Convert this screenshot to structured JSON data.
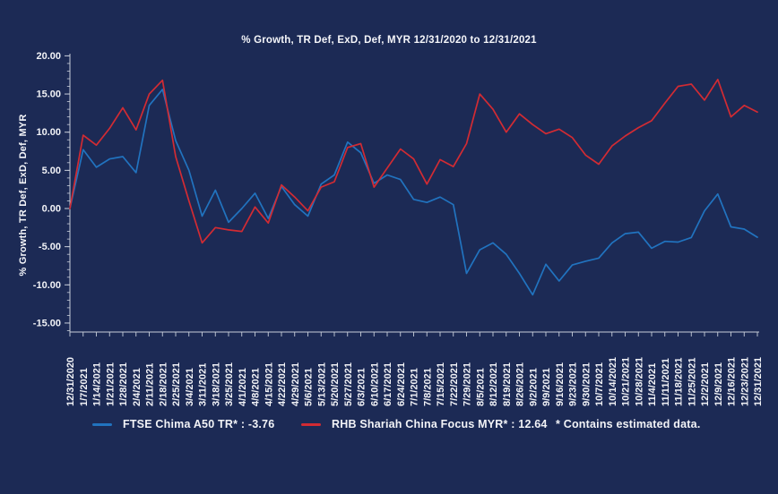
{
  "title": "% Growth, TR Def, ExD, Def, MYR 12/31/2020 to 12/31/2021",
  "y_axis": {
    "label": "% Growth, TR Def, ExD, Def, MYR",
    "tick_values": [
      20,
      15,
      10,
      5,
      0,
      -5,
      -10,
      -15
    ],
    "tick_labels": [
      "20.00",
      "15.00",
      "10.00",
      "5.00",
      "0.00",
      "-5.00",
      "-10.00",
      "-15.00"
    ]
  },
  "legend": {
    "series1_label": "FTSE Chima A50 TR* : -3.76",
    "series2_label": "RHB Shariah China Focus MYR* : 12.64",
    "note": "* Contains estimated data."
  },
  "colors": {
    "background": "#1c2a55",
    "text": "#f2f3f7",
    "axis": "#c7cdd9",
    "series1": "#2173bf",
    "series2": "#d22b33"
  },
  "chart_data": {
    "type": "line",
    "title": "% Growth, TR Def, ExD, Def, MYR 12/31/2020 to 12/31/2021",
    "ylabel": "% Growth, TR Def, ExD, Def, MYR",
    "xlabel": "",
    "ylim": [
      -15,
      20
    ],
    "grid": false,
    "legend_position": "bottom",
    "x": [
      "12/31/2020",
      "1/7/2021",
      "1/14/2021",
      "1/21/2021",
      "1/28/2021",
      "2/4/2021",
      "2/11/2021",
      "2/18/2021",
      "2/25/2021",
      "3/4/2021",
      "3/11/2021",
      "3/18/2021",
      "3/25/2021",
      "4/1/2021",
      "4/8/2021",
      "4/15/2021",
      "4/22/2021",
      "4/29/2021",
      "5/6/2021",
      "5/13/2021",
      "5/20/2021",
      "5/27/2021",
      "6/3/2021",
      "6/10/2021",
      "6/17/2021",
      "6/24/2021",
      "7/1/2021",
      "7/8/2021",
      "7/15/2021",
      "7/22/2021",
      "7/29/2021",
      "8/5/2021",
      "8/12/2021",
      "8/19/2021",
      "8/26/2021",
      "9/2/2021",
      "9/9/2021",
      "9/16/2021",
      "9/23/2021",
      "9/30/2021",
      "10/7/2021",
      "10/14/2021",
      "10/21/2021",
      "10/28/2021",
      "11/4/2021",
      "11/11/2021",
      "11/18/2021",
      "11/25/2021",
      "12/2/2021",
      "12/9/2021",
      "12/16/2021",
      "12/23/2021",
      "12/31/2021"
    ],
    "series": [
      {
        "name": "FTSE Chima A50 TR*",
        "final_value": -3.76,
        "color": "#2173bf",
        "values": [
          0,
          7.7,
          5.4,
          6.5,
          6.8,
          4.7,
          13.5,
          15.6,
          8.9,
          5.0,
          -1.0,
          2.4,
          -1.8,
          0.0,
          2.0,
          -1.3,
          2.9,
          0.5,
          -1.0,
          3.2,
          4.4,
          8.7,
          7.3,
          3.3,
          4.4,
          3.8,
          1.2,
          0.8,
          1.5,
          0.5,
          -8.5,
          -5.4,
          -4.5,
          -6.0,
          -8.5,
          -11.3,
          -7.3,
          -9.5,
          -7.4,
          -6.9,
          -6.5,
          -4.5,
          -3.3,
          -3.1,
          -5.2,
          -4.3,
          -4.4,
          -3.8,
          -0.3,
          1.9,
          -2.4,
          -2.7,
          -3.76
        ]
      },
      {
        "name": "RHB Shariah China Focus MYR*",
        "final_value": 12.64,
        "color": "#d22b33",
        "values": [
          0,
          9.6,
          8.3,
          10.5,
          13.2,
          10.3,
          15.0,
          16.8,
          6.8,
          1.0,
          -4.5,
          -2.5,
          -2.8,
          -3.0,
          0.2,
          -1.9,
          3.1,
          1.5,
          -0.3,
          2.8,
          3.5,
          8.0,
          8.5,
          2.8,
          5.3,
          7.8,
          6.5,
          3.2,
          6.4,
          5.5,
          8.5,
          15.0,
          13.0,
          10.0,
          12.4,
          11.0,
          9.8,
          10.4,
          9.3,
          7.0,
          5.8,
          8.2,
          9.5,
          10.6,
          11.5,
          13.8,
          16.0,
          16.3,
          14.2,
          16.9,
          12.0,
          13.5,
          12.64
        ]
      }
    ]
  }
}
